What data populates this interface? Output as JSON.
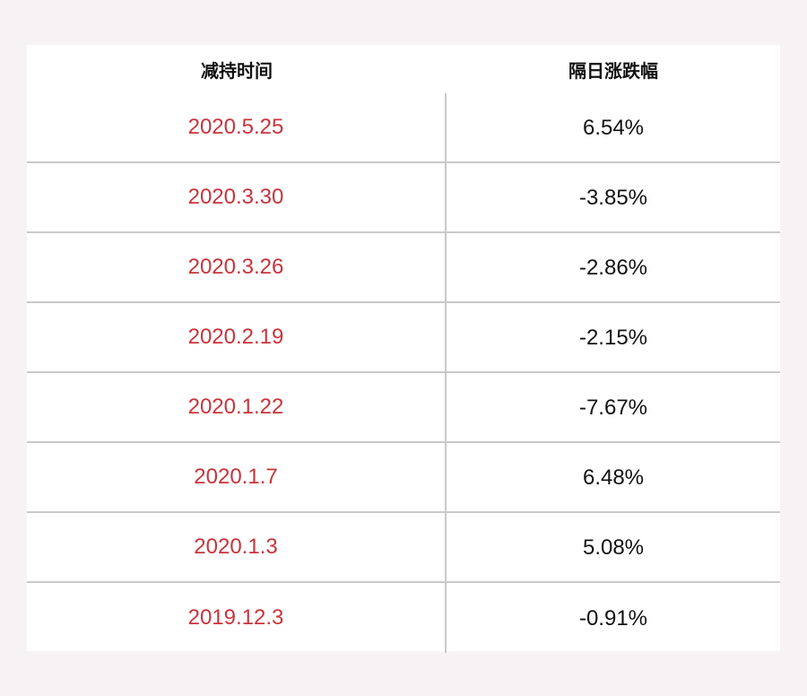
{
  "table": {
    "headers": [
      "减持时间",
      "隔日涨跌幅"
    ],
    "rows": [
      {
        "date": "2020.5.25",
        "change": "6.54%"
      },
      {
        "date": "2020.3.30",
        "change": "-3.85%"
      },
      {
        "date": "2020.3.26",
        "change": "-2.86%"
      },
      {
        "date": "2020.2.19",
        "change": "-2.15%"
      },
      {
        "date": "2020.1.22",
        "change": "-7.67%"
      },
      {
        "date": "2020.1.7",
        "change": "6.48%"
      },
      {
        "date": "2020.1.3",
        "change": "5.08%"
      },
      {
        "date": "2019.12.3",
        "change": "-0.91%"
      }
    ]
  },
  "colors": {
    "date_text": "#c9343c",
    "value_text": "#111111",
    "page_background": "#f7f3f4",
    "grid_line": "#c9c9c9"
  }
}
